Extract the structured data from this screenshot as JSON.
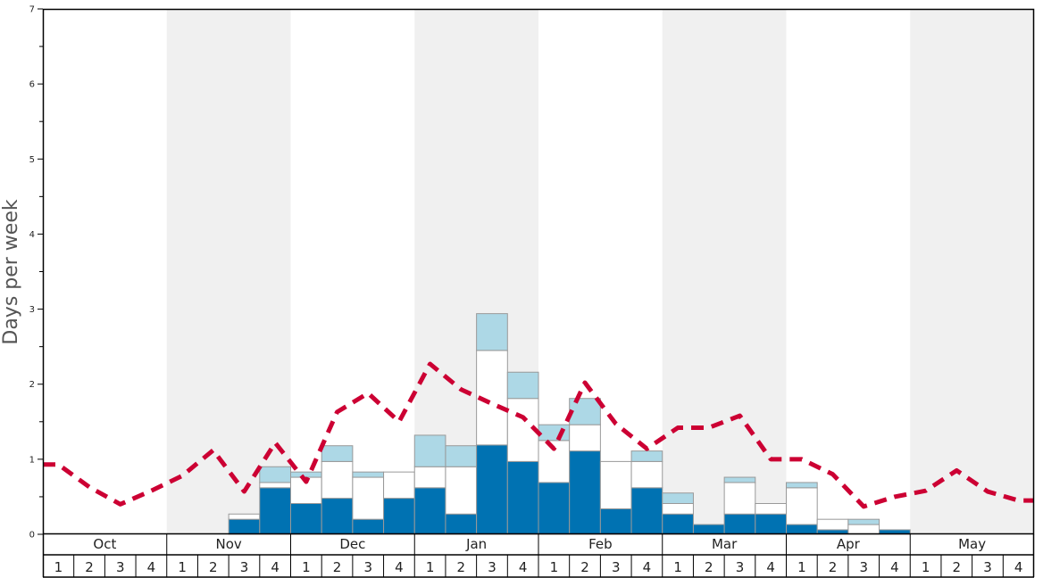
{
  "chart_data": {
    "type": "bar",
    "ylabel": "Days per week",
    "ylim": [
      0,
      7
    ],
    "y_ticks": [
      "0",
      "1",
      "2",
      "3",
      "4",
      "5",
      "6",
      "7"
    ],
    "months": [
      "Oct",
      "Nov",
      "Dec",
      "Jan",
      "Feb",
      "Mar",
      "Apr",
      "May"
    ],
    "week_labels": [
      "1",
      "2",
      "3",
      "4"
    ],
    "alternate_month_shading": true,
    "colors": {
      "bottom": "#0072b2",
      "middle": "#ffffff",
      "top": "#add8e6",
      "line": "#cc0033",
      "shade": "#f0f0f0",
      "bar_outline": "#999999"
    },
    "stacks": {
      "bottom": [
        0,
        0,
        0,
        0,
        0,
        0,
        0.2,
        0.62,
        0.41,
        0.48,
        0.2,
        0.48,
        0.62,
        0.27,
        1.19,
        0.97,
        0.69,
        1.11,
        0.34,
        0.62,
        0.27,
        0.13,
        0.27,
        0.27,
        0.13,
        0.06,
        0,
        0.06,
        0,
        0,
        0,
        0
      ],
      "middle": [
        0,
        0,
        0,
        0,
        0,
        0,
        0.07,
        0.07,
        0.35,
        0.49,
        0.56,
        0.35,
        0.28,
        0.63,
        1.26,
        0.84,
        0.56,
        0.35,
        0.63,
        0.35,
        0.14,
        0,
        0.42,
        0.14,
        0.49,
        0.14,
        0.13,
        0,
        0,
        0,
        0,
        0
      ],
      "top": [
        0,
        0,
        0,
        0,
        0,
        0,
        0,
        0.21,
        0.07,
        0.21,
        0.07,
        0,
        0.42,
        0.28,
        0.49,
        0.35,
        0.21,
        0.35,
        0,
        0.14,
        0.14,
        0,
        0.07,
        0,
        0.07,
        0,
        0.07,
        0,
        0,
        0,
        0,
        0
      ]
    },
    "line": [
      0.93,
      0.63,
      0.4,
      0.58,
      0.78,
      1.12,
      0.57,
      1.22,
      0.7,
      1.63,
      1.88,
      1.5,
      2.27,
      1.93,
      1.74,
      1.56,
      1.14,
      2.02,
      1.47,
      1.14,
      1.42,
      1.42,
      1.58,
      1.0,
      1.0,
      0.8,
      0.37,
      0.5,
      0.58,
      0.85,
      0.57,
      0.45
    ]
  }
}
